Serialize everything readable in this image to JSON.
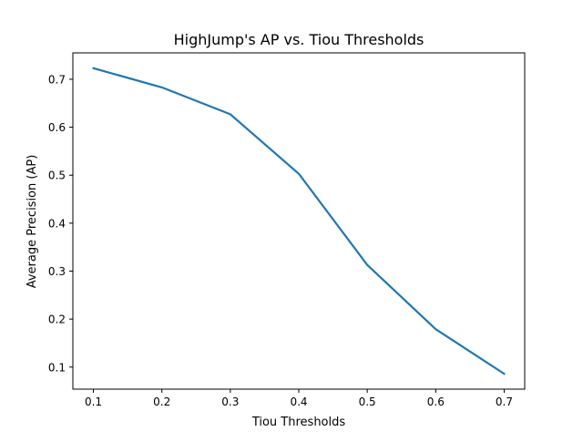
{
  "chart_data": {
    "type": "line",
    "title": "HighJump's AP vs. Tiou Thresholds",
    "xlabel": "Tiou Thresholds",
    "ylabel": "Average Precision (AP)",
    "x": [
      0.1,
      0.2,
      0.3,
      0.4,
      0.5,
      0.6,
      0.7
    ],
    "series": [
      {
        "values": [
          0.723,
          0.683,
          0.627,
          0.503,
          0.313,
          0.179,
          0.086
        ],
        "color": "#1f77b4"
      }
    ],
    "xlim": [
      0.07,
      0.73
    ],
    "ylim": [
      0.054,
      0.755
    ],
    "xticks": [
      0.1,
      0.2,
      0.3,
      0.4,
      0.5,
      0.6,
      0.7
    ],
    "xtick_labels": [
      "0.1",
      "0.2",
      "0.3",
      "0.4",
      "0.5",
      "0.6",
      "0.7"
    ],
    "yticks": [
      0.1,
      0.2,
      0.3,
      0.4,
      0.5,
      0.6,
      0.7
    ],
    "ytick_labels": [
      "0.1",
      "0.2",
      "0.3",
      "0.4",
      "0.5",
      "0.6",
      "0.7"
    ],
    "grid": false,
    "legend": "none"
  }
}
